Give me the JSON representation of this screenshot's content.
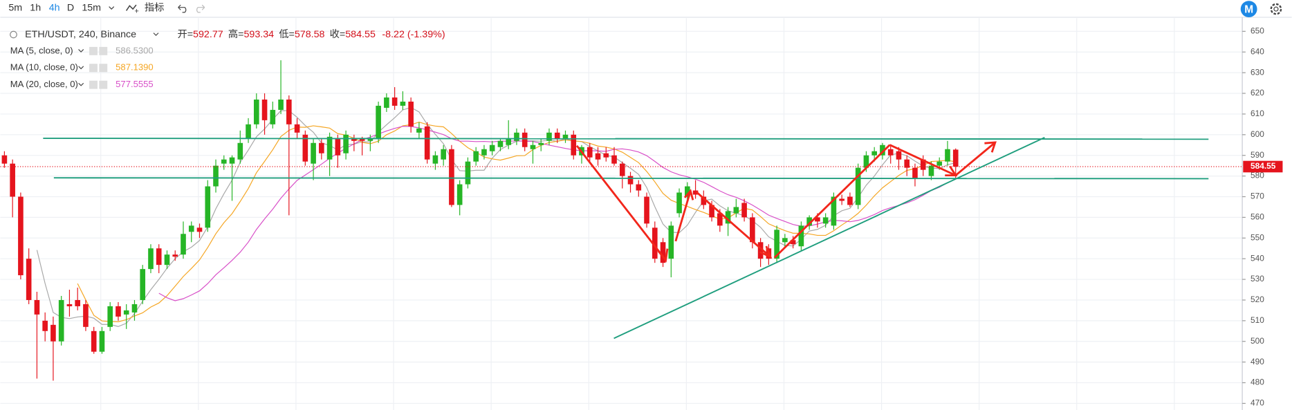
{
  "toolbar": {
    "intervals": [
      "5m",
      "1h",
      "4h",
      "D",
      "15m"
    ],
    "active": 2,
    "indicators": "指标"
  },
  "logo": "M",
  "header": {
    "symbol": "ETH/USDT, 240, Binance",
    "open_label": "开=",
    "high_label": "高=",
    "low_label": "低=",
    "close_label": "收=",
    "change": "-8.22 (-1.39%)"
  },
  "chart_data": {
    "type": "candlestick",
    "up_color": "#26b526",
    "down_color": "#e5141d",
    "ylim": [
      466.8,
      656.4
    ],
    "yticks": [
      470,
      480,
      490,
      500,
      510,
      520,
      530,
      540,
      550,
      560,
      570,
      580,
      590,
      600,
      610,
      620,
      630,
      640,
      650
    ],
    "grid": true,
    "indicators": [
      {
        "name": "MA (5, close, 0)",
        "period": 5,
        "color": "#a8a8a8",
        "value_label": "586.5300"
      },
      {
        "name": "MA (10, close, 0)",
        "period": 10,
        "color": "#f5a623",
        "value_label": "587.1390"
      },
      {
        "name": "MA (20, close, 0)",
        "period": 20,
        "color": "#d84fc8",
        "value_label": "577.5555"
      }
    ],
    "open": [
      590,
      586,
      570,
      540,
      520,
      510,
      508,
      500,
      518,
      520,
      518,
      505,
      495,
      507,
      517,
      513,
      514,
      520,
      535,
      545,
      537,
      542,
      542,
      553,
      555,
      555,
      575,
      586,
      586,
      588,
      598,
      605,
      617,
      605,
      612,
      617,
      605,
      600,
      586,
      596,
      588,
      598,
      591,
      598,
      598,
      597,
      598,
      613,
      618,
      614,
      616,
      601,
      604,
      586,
      588,
      593,
      566,
      576,
      587,
      590,
      592,
      594,
      595,
      597,
      601,
      593,
      595,
      597,
      601,
      598,
      600,
      590,
      594,
      591,
      591,
      590,
      586,
      580,
      576,
      570,
      555,
      548,
      540,
      562,
      570,
      573,
      570,
      566,
      562,
      557,
      562,
      567,
      560,
      548,
      545,
      540,
      548,
      549,
      546,
      556,
      560,
      557,
      556,
      569,
      570,
      566,
      584,
      590,
      590,
      593,
      592,
      588,
      584,
      588,
      580,
      585,
      587,
      592.77
    ],
    "high": [
      592,
      588,
      572,
      545,
      524,
      514,
      512,
      522,
      525,
      526,
      520,
      507,
      507,
      519,
      519,
      518,
      520,
      537,
      547,
      547,
      544,
      544,
      558,
      558,
      557,
      578,
      588,
      590,
      590,
      602,
      608,
      620,
      620,
      616,
      636,
      619,
      608,
      602,
      598,
      598,
      601,
      600,
      602,
      600,
      599,
      600,
      616,
      620,
      623,
      621,
      618,
      606,
      606,
      592,
      595,
      595,
      578,
      589,
      594,
      595,
      597,
      598,
      607,
      603,
      603,
      597,
      598,
      603,
      603,
      602,
      602,
      595,
      596,
      594,
      594,
      594,
      587,
      582,
      578,
      572,
      558,
      550,
      558,
      574,
      577,
      578,
      573,
      568,
      564,
      565,
      569,
      569,
      562,
      550,
      547,
      556,
      552,
      551,
      558,
      561,
      562,
      562,
      572,
      571,
      572,
      586,
      592,
      594,
      596,
      595,
      594,
      590,
      586,
      590,
      587,
      589,
      597,
      593.34
    ],
    "low": [
      584,
      560,
      530,
      518,
      482,
      500,
      481,
      498,
      512,
      515,
      505,
      494,
      494,
      505,
      510,
      506,
      510,
      518,
      533,
      533,
      535,
      539,
      540,
      548,
      550,
      553,
      572,
      583,
      568,
      586,
      596,
      603,
      600,
      603,
      610,
      561,
      598,
      585,
      578,
      588,
      580,
      584,
      588,
      592,
      590,
      592,
      596,
      611,
      612,
      612,
      601,
      598,
      586,
      583,
      585,
      565,
      561,
      574,
      585,
      588,
      590,
      592,
      593,
      595,
      592,
      586,
      592,
      595,
      596,
      596,
      588,
      586,
      587,
      585,
      587,
      585,
      574,
      572,
      570,
      555,
      538,
      536,
      531,
      560,
      567,
      569,
      564,
      558,
      553,
      551,
      560,
      558,
      545,
      536,
      537,
      538,
      545,
      545,
      544,
      554,
      555,
      555,
      554,
      566,
      565,
      564,
      582,
      587,
      588,
      586,
      583,
      580,
      575,
      580,
      578,
      583,
      585,
      578.58
    ],
    "close": [
      586,
      570,
      532,
      520,
      513,
      505,
      500,
      520,
      517,
      517,
      507,
      495,
      505,
      517,
      512,
      515,
      518,
      535,
      545,
      537,
      542,
      541,
      552,
      556,
      553,
      575,
      585,
      588,
      589,
      596,
      605,
      617,
      607,
      612,
      617,
      605,
      601,
      587,
      596,
      591,
      599,
      590,
      600,
      597,
      597,
      598,
      614,
      618,
      614,
      616,
      604,
      603,
      588,
      590,
      593,
      566,
      576,
      587,
      592,
      593,
      595,
      597,
      598,
      601,
      594,
      595,
      596,
      601,
      598,
      600,
      590,
      594,
      589,
      588,
      589,
      586,
      580,
      576,
      573,
      557,
      540,
      538,
      556,
      572,
      575,
      571,
      566,
      560,
      556,
      563,
      565,
      560,
      548,
      540,
      540,
      554,
      550,
      547,
      556,
      560,
      558,
      560,
      570,
      568,
      566,
      584,
      590,
      592,
      595,
      590,
      588,
      584,
      579,
      583,
      585,
      587,
      593,
      584.55
    ]
  }
}
